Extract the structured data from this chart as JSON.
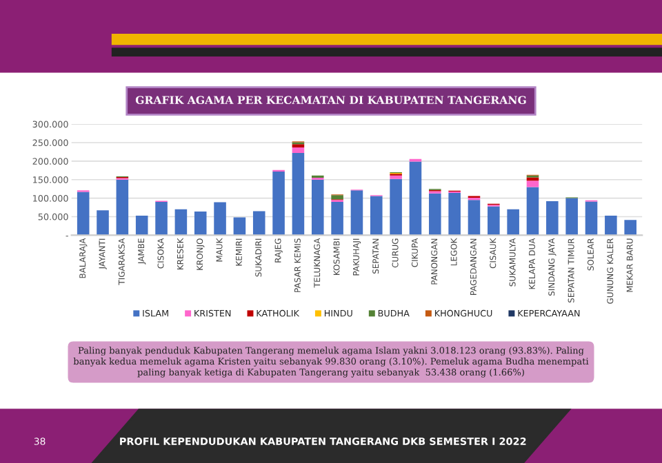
{
  "chart_data": {
    "type": "bar",
    "stacked": true,
    "title": "GRAFIK AGAMA PER KECAMATAN DI KABUPATEN TANGERANG",
    "categories": [
      "BALARAJA",
      "JAYANTI",
      "TIGARAKSA",
      "JAMBE",
      "CISOKA",
      "KRESEK",
      "KRONJO",
      "MAUK",
      "KEMIRI",
      "SUKADIRI",
      "RAJEG",
      "PASAR KEMIS",
      "TELUKNAGA",
      "KOSAMBI",
      "PAKUHAJI",
      "SEPATAN",
      "CURUG",
      "CIKUPA",
      "PANONGAN",
      "LEGOK",
      "PAGEDANGAN",
      "CISAUK",
      "SUKAMULYA",
      "KELAPA DUA",
      "SINDANG JAYA",
      "SEPATAN TIMUR",
      "SOLEAR",
      "GUNUNG KALER",
      "MEKAR BARU"
    ],
    "series": [
      {
        "name": "ISLAM",
        "color": "#4472c4",
        "values": [
          117,
          67,
          150,
          53,
          90,
          70,
          64,
          89,
          48,
          65,
          172,
          222,
          150,
          90,
          121,
          106,
          152,
          199,
          113,
          114,
          95,
          78,
          70,
          130,
          92,
          100,
          91,
          53,
          41
        ]
      },
      {
        "name": "KRISTEN",
        "color": "#ff66cc",
        "values": [
          4,
          0,
          4,
          0,
          3,
          0,
          0,
          0,
          0,
          0,
          4,
          15,
          5,
          5,
          2,
          2,
          9,
          7,
          6,
          4,
          6,
          4,
          0,
          17,
          0,
          0,
          3,
          0,
          0
        ]
      },
      {
        "name": "KATHOLIK",
        "color": "#c00000",
        "values": [
          0,
          0,
          3,
          0,
          0,
          0,
          0,
          0,
          0,
          0,
          0,
          9,
          0,
          2,
          0,
          0,
          5,
          0,
          3,
          2,
          5,
          3,
          0,
          9,
          0,
          0,
          0,
          0,
          0
        ]
      },
      {
        "name": "HINDU",
        "color": "#ffc000",
        "values": [
          0,
          0,
          0,
          0,
          0,
          0,
          0,
          0,
          0,
          0,
          0,
          0,
          0,
          0,
          0,
          0,
          2,
          0,
          0,
          0,
          0,
          0,
          0,
          0,
          0,
          0,
          0,
          0,
          0
        ]
      },
      {
        "name": "BUDHA",
        "color": "#548235",
        "values": [
          0,
          0,
          2,
          0,
          0,
          0,
          0,
          0,
          0,
          0,
          0,
          5,
          6,
          11,
          0,
          0,
          2,
          0,
          3,
          0,
          0,
          0,
          0,
          5,
          0,
          2,
          0,
          0,
          0
        ]
      },
      {
        "name": "KHONGHUCU",
        "color": "#c55a11",
        "values": [
          0,
          0,
          0,
          0,
          0,
          0,
          0,
          0,
          0,
          0,
          0,
          2,
          0,
          2,
          0,
          0,
          0,
          0,
          0,
          0,
          0,
          0,
          0,
          2,
          0,
          0,
          0,
          0,
          0
        ]
      },
      {
        "name": "KEPERCAYAAN",
        "color": "#203864",
        "values": [
          0,
          0,
          0,
          0,
          0,
          0,
          0,
          0,
          0,
          0,
          0,
          0,
          0,
          0,
          0,
          0,
          0,
          0,
          0,
          0,
          0,
          0,
          0,
          0,
          0,
          0,
          0,
          0,
          0
        ]
      }
    ],
    "ylim": [
      0,
      300
    ],
    "yticks": [
      {
        "value": 0,
        "label": "-"
      },
      {
        "value": 50,
        "label": "50.000"
      },
      {
        "value": 100,
        "label": "100.000"
      },
      {
        "value": 150,
        "label": "150.000"
      },
      {
        "value": 200,
        "label": "200.000"
      },
      {
        "value": 250,
        "label": "250.000"
      },
      {
        "value": 300,
        "label": "300.000"
      }
    ],
    "grid": "y",
    "legend": "bottom",
    "annotations": [
      "Paling banyak penduduk Kabupaten Tangerang memeluk agama Islam yakni 3.018.123 orang (93.83%). Paling\nbanyak kedua memeluk agama Kristen yaitu sebanyak 99.830 orang (3.10%). Pemeluk agama Budha menempati\npaling banyak ketiga di Kabupaten Tangerang yaitu sebanyak  53.438 orang (1.66%)",
      "38",
      "PROFIL KEPENDUDUKAN KABUPATEN TANGERANG DKB SEMESTER I 2022"
    ]
  }
}
